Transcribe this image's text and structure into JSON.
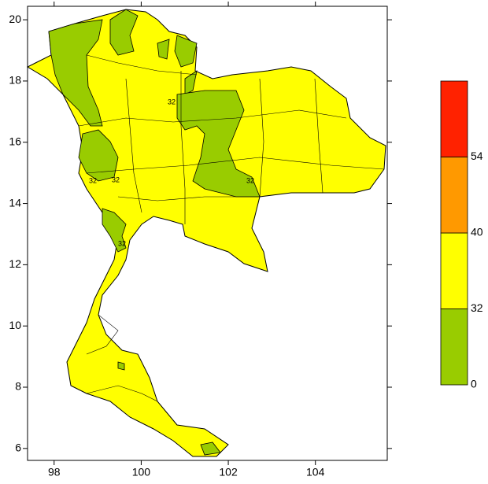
{
  "map": {
    "xlim": [
      97.39,
      105.65
    ],
    "ylim": [
      5.61,
      20.44
    ],
    "xticks": [
      98,
      100,
      102,
      104
    ],
    "yticks": [
      6,
      8,
      10,
      12,
      14,
      16,
      18,
      20
    ],
    "contour_labels": [
      32,
      32,
      32,
      32,
      32
    ]
  },
  "colorbar": {
    "ticks": [
      0,
      32,
      40,
      54
    ],
    "colors": [
      "#99cc00",
      "#ffff00",
      "#ff9900",
      "#ff2200"
    ]
  }
}
